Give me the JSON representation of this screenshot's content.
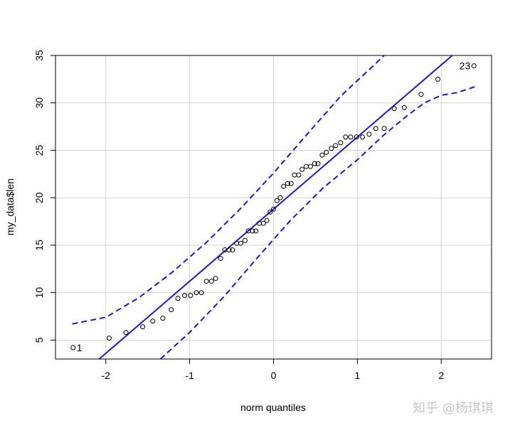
{
  "chart_data": {
    "type": "scatter",
    "title": "",
    "xlabel": "norm quantiles",
    "ylabel": "my_data$len",
    "xlim": [
      -2.6,
      2.6
    ],
    "ylim": [
      3,
      35
    ],
    "xticks": [
      -2,
      -1,
      0,
      1,
      2
    ],
    "yticks": [
      5,
      10,
      15,
      20,
      25,
      30,
      35
    ],
    "grid": true,
    "colors": {
      "ref_line": "#1a1acd",
      "envelope": "#1a1acd",
      "points": "#000000",
      "grid": "#d3d3d3"
    },
    "reference_line": {
      "intercept": 18.8,
      "slope": 7.6
    },
    "envelope_lower": [
      [
        -1.35,
        3.0
      ],
      [
        -1.0,
        5.8
      ],
      [
        -0.6,
        9.5
      ],
      [
        -0.2,
        13.6
      ],
      [
        0.2,
        17.6
      ],
      [
        0.6,
        21.1
      ],
      [
        1.0,
        24.0
      ],
      [
        1.3,
        26.5
      ],
      [
        1.6,
        28.7
      ],
      [
        1.8,
        30.0
      ],
      [
        2.0,
        30.8
      ],
      [
        2.2,
        31.1
      ],
      [
        2.4,
        31.7
      ]
    ],
    "envelope_upper": [
      [
        -2.4,
        6.7
      ],
      [
        -2.0,
        7.4
      ],
      [
        -1.6,
        9.5
      ],
      [
        -1.2,
        12.2
      ],
      [
        -0.8,
        15.3
      ],
      [
        -0.4,
        18.8
      ],
      [
        0.0,
        22.6
      ],
      [
        0.4,
        26.7
      ],
      [
        0.8,
        30.7
      ],
      [
        1.2,
        34.0
      ],
      [
        1.32,
        35.0
      ]
    ],
    "points": [
      [
        -2.39,
        4.2
      ],
      [
        -1.96,
        5.2
      ],
      [
        -1.76,
        5.8
      ],
      [
        -1.56,
        6.4
      ],
      [
        -1.44,
        7.0
      ],
      [
        -1.32,
        7.3
      ],
      [
        -1.22,
        8.2
      ],
      [
        -1.14,
        9.4
      ],
      [
        -1.06,
        9.7
      ],
      [
        -0.99,
        9.7
      ],
      [
        -0.92,
        10.0
      ],
      [
        -0.86,
        10.0
      ],
      [
        -0.8,
        11.2
      ],
      [
        -0.74,
        11.2
      ],
      [
        -0.69,
        11.5
      ],
      [
        -0.63,
        13.6
      ],
      [
        -0.58,
        14.5
      ],
      [
        -0.53,
        14.5
      ],
      [
        -0.49,
        14.5
      ],
      [
        -0.44,
        15.2
      ],
      [
        -0.39,
        15.2
      ],
      [
        -0.34,
        15.5
      ],
      [
        -0.3,
        16.5
      ],
      [
        -0.25,
        16.5
      ],
      [
        -0.21,
        16.5
      ],
      [
        -0.17,
        17.3
      ],
      [
        -0.12,
        17.3
      ],
      [
        -0.08,
        17.6
      ],
      [
        -0.04,
        18.5
      ],
      [
        0.0,
        18.8
      ],
      [
        0.04,
        19.7
      ],
      [
        0.08,
        20.0
      ],
      [
        0.12,
        21.2
      ],
      [
        0.17,
        21.5
      ],
      [
        0.21,
        21.5
      ],
      [
        0.25,
        22.4
      ],
      [
        0.3,
        22.4
      ],
      [
        0.34,
        23.0
      ],
      [
        0.39,
        23.3
      ],
      [
        0.44,
        23.3
      ],
      [
        0.49,
        23.6
      ],
      [
        0.53,
        23.6
      ],
      [
        0.58,
        24.5
      ],
      [
        0.63,
        24.8
      ],
      [
        0.69,
        25.2
      ],
      [
        0.74,
        25.5
      ],
      [
        0.8,
        25.8
      ],
      [
        0.86,
        26.4
      ],
      [
        0.92,
        26.4
      ],
      [
        0.99,
        26.4
      ],
      [
        1.06,
        26.4
      ],
      [
        1.14,
        26.7
      ],
      [
        1.22,
        27.3
      ],
      [
        1.32,
        27.3
      ],
      [
        1.44,
        29.4
      ],
      [
        1.56,
        29.5
      ],
      [
        1.76,
        30.9
      ],
      [
        1.96,
        32.5
      ],
      [
        2.39,
        33.9
      ]
    ],
    "point_labels": [
      {
        "text": "1",
        "index": 0
      },
      {
        "text": "23",
        "index": 58
      }
    ]
  },
  "watermark": "知乎 @杨琪琪"
}
